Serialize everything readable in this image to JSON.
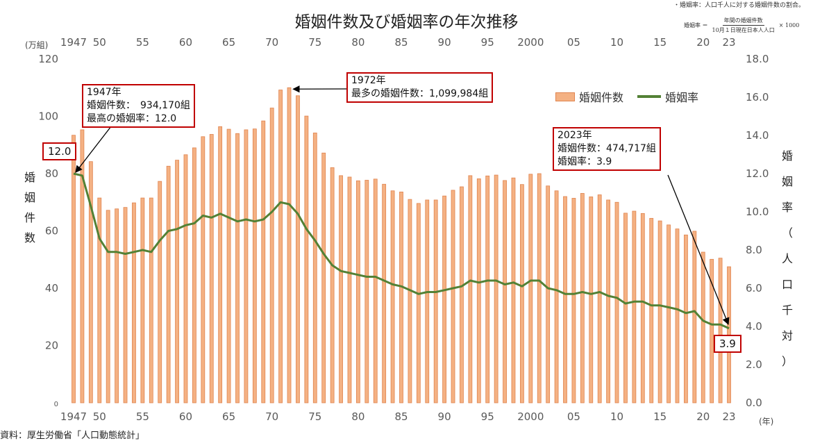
{
  "title": "婚姻件数及び婚姻率の年次推移",
  "note": "・婚姻率：人口千人に対する婚姻件数の割合。",
  "formula": {
    "lhs": "婚姻率 ＝",
    "numerator": "年間の婚姻件数",
    "denominator": "10月１日現在日本人人口",
    "multiplier": "× 1000"
  },
  "axis_units": {
    "left": "(万組)",
    "right": "(年)"
  },
  "left_axis_label": [
    "婚",
    "姻",
    "件",
    "数"
  ],
  "right_axis_label": [
    "婚",
    "姻",
    "率",
    "（",
    "人",
    "口",
    "千",
    "対",
    "）"
  ],
  "legend": {
    "bars": "婚姻件数",
    "line": "婚姻率"
  },
  "annotations": {
    "a1947": [
      "1947年",
      "婚姻件数：　934,170組",
      "最高の婚姻率：12.0"
    ],
    "a1972": [
      "1972年",
      "最多の婚姻件数：1,099,984組"
    ],
    "a2023": [
      "2023年",
      "婚姻件数：474,717組",
      "婚姻率：3.9"
    ],
    "v1947": "12.0",
    "v2023": "3.9"
  },
  "source": "資料：厚生労働省「人口動態統計」",
  "colors": {
    "bar_fill": "#f4b183",
    "bar_edge": "#e0844f",
    "line": "#538135",
    "callout": "#c00000",
    "axis_text": "#595959"
  },
  "chart_data": {
    "type": "bar+line",
    "title": "婚姻件数及び婚姻率の年次推移",
    "x_tick_labels": [
      {
        "year": 1947,
        "label": "1947"
      },
      {
        "year": 1950,
        "label": "50"
      },
      {
        "year": 1955,
        "label": "55"
      },
      {
        "year": 1960,
        "label": "60"
      },
      {
        "year": 1965,
        "label": "65"
      },
      {
        "year": 1970,
        "label": "70"
      },
      {
        "year": 1975,
        "label": "75"
      },
      {
        "year": 1980,
        "label": "80"
      },
      {
        "year": 1985,
        "label": "85"
      },
      {
        "year": 1990,
        "label": "90"
      },
      {
        "year": 1995,
        "label": "95"
      },
      {
        "year": 2000,
        "label": "2000"
      },
      {
        "year": 2005,
        "label": "05"
      },
      {
        "year": 2010,
        "label": "10"
      },
      {
        "year": 2015,
        "label": "15"
      },
      {
        "year": 2020,
        "label": "20"
      },
      {
        "year": 2023,
        "label": "23"
      }
    ],
    "y_left": {
      "label": "婚姻件数",
      "unit": "万組",
      "range": [
        0,
        120
      ],
      "ticks": [
        "0",
        "20",
        "40",
        "60",
        "80",
        "100",
        "120"
      ]
    },
    "y_right": {
      "label": "婚姻率（人口千対）",
      "range": [
        0,
        18
      ],
      "ticks": [
        "0.0",
        "2.0",
        "4.0",
        "6.0",
        "8.0",
        "10.0",
        "12.0",
        "14.0",
        "16.0",
        "18.0"
      ]
    },
    "years": [
      1947,
      1948,
      1949,
      1950,
      1951,
      1952,
      1953,
      1954,
      1955,
      1956,
      1957,
      1958,
      1959,
      1960,
      1961,
      1962,
      1963,
      1964,
      1965,
      1966,
      1967,
      1968,
      1969,
      1970,
      1971,
      1972,
      1973,
      1974,
      1975,
      1976,
      1977,
      1978,
      1979,
      1980,
      1981,
      1982,
      1983,
      1984,
      1985,
      1986,
      1987,
      1988,
      1989,
      1990,
      1991,
      1992,
      1993,
      1994,
      1995,
      1996,
      1997,
      1998,
      1999,
      2000,
      2001,
      2002,
      2003,
      2004,
      2005,
      2006,
      2007,
      2008,
      2009,
      2010,
      2011,
      2012,
      2013,
      2014,
      2015,
      2016,
      2017,
      2018,
      2019,
      2020,
      2021,
      2022,
      2023
    ],
    "series": [
      {
        "name": "婚姻件数",
        "type": "bar",
        "axis": "left",
        "unit": "万組",
        "values": [
          93.4,
          95.3,
          84.2,
          71.5,
          67.2,
          67.7,
          68.2,
          69.8,
          71.5,
          71.5,
          77.3,
          82.6,
          84.7,
          86.6,
          89.0,
          92.9,
          93.7,
          96.4,
          95.5,
          94.0,
          95.3,
          95.6,
          98.4,
          102.9,
          109.2,
          110.0,
          107.2,
          100.1,
          94.2,
          87.2,
          82.1,
          79.3,
          78.8,
          77.5,
          77.7,
          78.1,
          76.3,
          74.0,
          73.6,
          71.0,
          69.6,
          70.8,
          70.8,
          72.2,
          74.2,
          75.4,
          79.3,
          78.2,
          79.2,
          79.5,
          77.6,
          78.5,
          76.2,
          79.8,
          80.0,
          75.7,
          74.0,
          72.0,
          71.4,
          73.1,
          71.9,
          72.6,
          70.8,
          70.0,
          66.2,
          66.9,
          66.1,
          64.4,
          63.5,
          62.1,
          60.7,
          58.6,
          59.9,
          52.6,
          50.1,
          50.5,
          47.5
        ]
      },
      {
        "name": "婚姻率",
        "type": "line",
        "axis": "right",
        "values": [
          12.0,
          11.9,
          10.3,
          8.6,
          7.9,
          7.9,
          7.8,
          7.9,
          8.0,
          7.9,
          8.5,
          9.0,
          9.1,
          9.3,
          9.4,
          9.8,
          9.7,
          9.9,
          9.7,
          9.5,
          9.6,
          9.5,
          9.6,
          10.0,
          10.5,
          10.4,
          9.9,
          9.1,
          8.5,
          7.8,
          7.2,
          6.9,
          6.8,
          6.7,
          6.6,
          6.6,
          6.4,
          6.2,
          6.1,
          5.9,
          5.7,
          5.8,
          5.8,
          5.9,
          6.0,
          6.1,
          6.4,
          6.3,
          6.4,
          6.4,
          6.2,
          6.3,
          6.1,
          6.4,
          6.4,
          6.0,
          5.9,
          5.7,
          5.7,
          5.8,
          5.7,
          5.8,
          5.6,
          5.5,
          5.2,
          5.3,
          5.3,
          5.1,
          5.1,
          5.0,
          4.9,
          4.7,
          4.8,
          4.3,
          4.1,
          4.1,
          3.9
        ]
      }
    ]
  }
}
